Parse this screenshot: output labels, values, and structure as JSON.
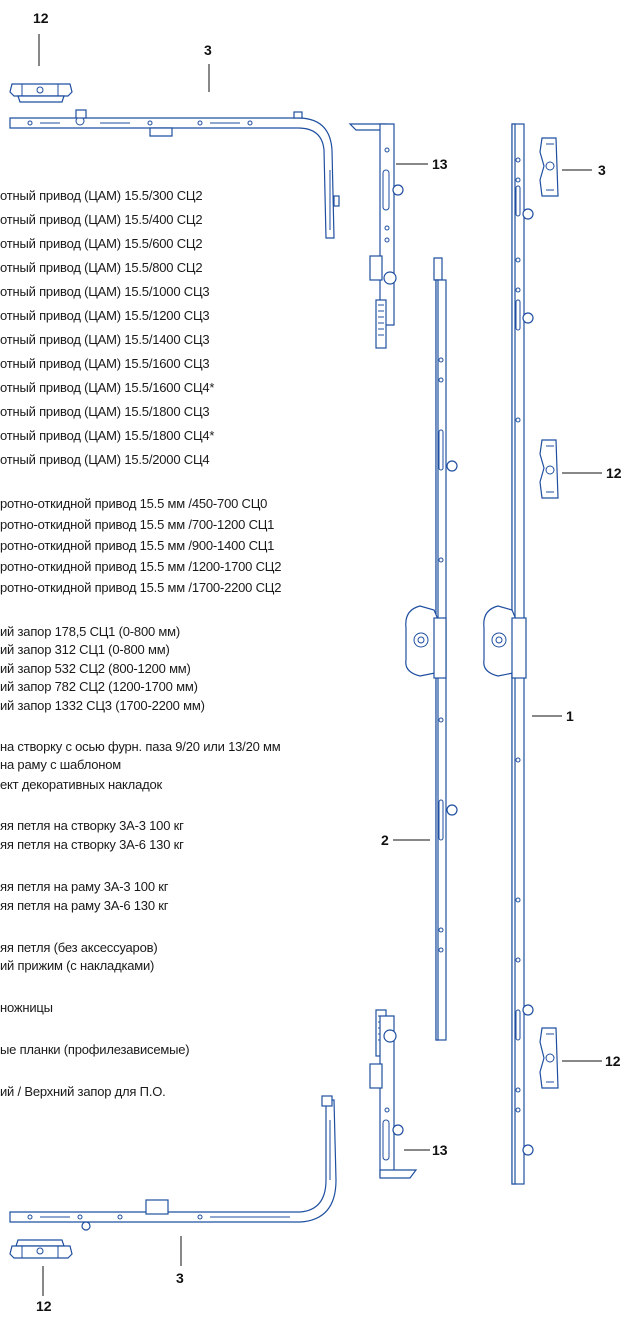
{
  "parts_list": {
    "group_drive": [
      "отный привод (ЦАМ) 15.5/300 СЦ2",
      "отный привод (ЦАМ) 15.5/400 СЦ2",
      "отный привод (ЦАМ) 15.5/600 СЦ2",
      "отный привод (ЦАМ) 15.5/800 СЦ2",
      "отный привод (ЦАМ) 15.5/1000 СЦ3",
      "отный привод (ЦАМ) 15.5/1200 СЦ3",
      "отный привод (ЦАМ) 15.5/1400 СЦ3",
      "отный привод (ЦАМ) 15.5/1600 СЦ3",
      "отный привод (ЦАМ) 15.5/1600 СЦ4*",
      "отный привод (ЦАМ) 15.5/1800 СЦ3",
      "отный привод (ЦАМ) 15.5/1800 СЦ4*",
      "отный привод (ЦАМ) 15.5/2000 СЦ4"
    ],
    "group_tilt": [
      "ротно-откидной привод 15.5 мм /450-700 СЦ0",
      "ротно-откидной привод 15.5 мм /700-1200 СЦ1",
      "ротно-откидной привод 15.5 мм /900-1400 СЦ1",
      "ротно-откидной привод 15.5 мм /1200-1700 СЦ2",
      "ротно-откидной привод 15.5 мм /1700-2200 СЦ2"
    ],
    "group_lock": [
      "ий запор 178,5 СЦ1 (0-800 мм)",
      "ий запор 312 СЦ1 (0-800 мм)",
      "ий запор 532 СЦ2 (800-1200 мм)",
      "ий запор 782 СЦ2 (1200-1700 мм)",
      "ий запор 1332 СЦ3 (1700-2200 мм)"
    ],
    "group_misc": [
      " на створку с осью фурн. паза 9/20 или 13/20 мм",
      " на раму с шаблоном",
      "ект декоративных накладок"
    ],
    "group_sash_hinge": [
      "яя петля на створку 3А-3 100 кг",
      "яя петля на створку 3А-6 130 кг"
    ],
    "group_frame_hinge": [
      "яя петля на раму 3А-3 100 кг",
      "яя петля на раму 3А-6 130 кг"
    ],
    "group_other": [
      "яя петля (без аксессуаров)",
      "ий прижим (с накладками)"
    ],
    "scissors": "ножницы",
    "strikers": "ые планки (профилезависемые)",
    "bottom_lock": "ий / Верхний запор для П.О."
  },
  "callouts": {
    "top_12": "12",
    "top_3": "3",
    "top_13": "13",
    "right_3": "3",
    "right_12_mid": "12",
    "label_1": "1",
    "label_2": "2",
    "right_12_bottom": "12",
    "bottom_13": "13",
    "bottom_3": "3",
    "bottom_12": "12"
  },
  "colors": {
    "line_art": "#1f4fa0",
    "text": "#1a1a1a",
    "background": "#ffffff"
  }
}
